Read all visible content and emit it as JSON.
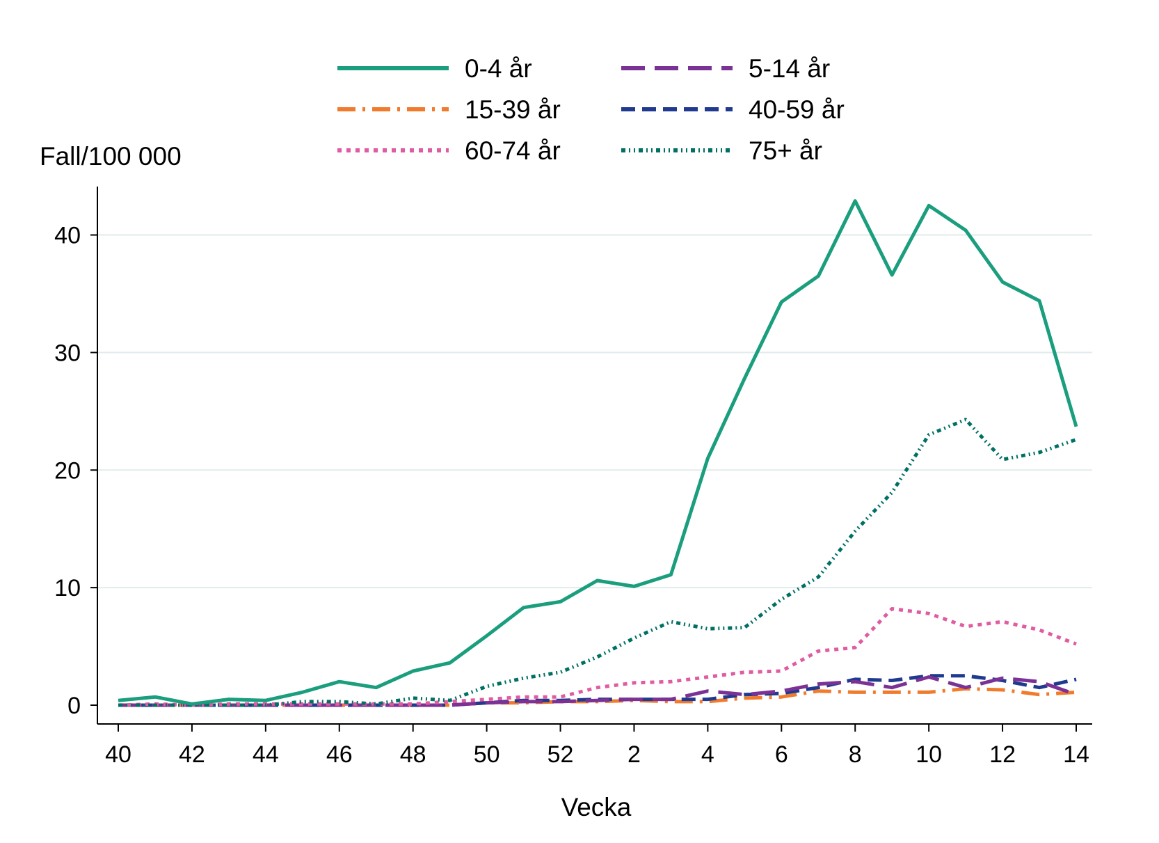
{
  "chart_data": {
    "type": "line",
    "ylabel": "Fall/100 000",
    "xlabel": "Vecka",
    "ylim": [
      0,
      44
    ],
    "yticks": [
      0,
      10,
      20,
      30,
      40
    ],
    "x": [
      "40",
      "41",
      "42",
      "43",
      "44",
      "45",
      "46",
      "47",
      "48",
      "49",
      "50",
      "51",
      "52",
      "1",
      "2",
      "3",
      "4",
      "5",
      "6",
      "7",
      "8",
      "9",
      "10",
      "11",
      "12",
      "13",
      "14"
    ],
    "xticks": [
      "40",
      "42",
      "44",
      "46",
      "48",
      "50",
      "52",
      "2",
      "4",
      "6",
      "8",
      "10",
      "12",
      "14"
    ],
    "grid": true,
    "legend_position": "top",
    "series": [
      {
        "name": "0-4 år",
        "color": "#1a9e7e",
        "dash": "solid",
        "values": [
          0.4,
          0.7,
          0.1,
          0.5,
          0.4,
          1.1,
          2.0,
          1.5,
          2.9,
          3.6,
          5.9,
          8.3,
          8.8,
          10.6,
          10.1,
          11.1,
          21.0,
          27.8,
          34.3,
          36.5,
          42.9,
          36.6,
          42.5,
          40.4,
          36.0,
          34.4,
          23.7
        ]
      },
      {
        "name": "5-14 år",
        "color": "#7b3294",
        "dash": "longdash",
        "values": [
          0,
          0,
          0,
          0,
          0,
          0,
          0,
          0,
          0,
          0,
          0.2,
          0.3,
          0.3,
          0.4,
          0.5,
          0.5,
          1.2,
          0.9,
          1.2,
          1.8,
          2.0,
          1.5,
          2.4,
          1.5,
          2.3,
          2.0,
          0.9
        ]
      },
      {
        "name": "15-39 år",
        "color": "#f07b2c",
        "dash": "dashdot",
        "values": [
          0,
          0,
          0,
          0,
          0,
          0,
          0,
          0,
          0,
          0,
          0.2,
          0.2,
          0.3,
          0.3,
          0.4,
          0.3,
          0.3,
          0.6,
          0.7,
          1.2,
          1.1,
          1.1,
          1.1,
          1.4,
          1.3,
          0.9,
          1.1
        ]
      },
      {
        "name": "40-59 år",
        "color": "#1f3a8f",
        "dash": "shortdash",
        "values": [
          0,
          0,
          0,
          0,
          0,
          0,
          0,
          0,
          0,
          0,
          0.2,
          0.4,
          0.4,
          0.5,
          0.5,
          0.5,
          0.5,
          0.9,
          1.0,
          1.5,
          2.2,
          2.1,
          2.5,
          2.5,
          2.1,
          1.5,
          2.2
        ]
      },
      {
        "name": "60-74 år",
        "color": "#e05ca2",
        "dash": "dot",
        "values": [
          0,
          0.1,
          0,
          0.1,
          0.1,
          0.1,
          0.1,
          0.1,
          0.1,
          0.3,
          0.5,
          0.7,
          0.7,
          1.5,
          1.9,
          2.0,
          2.4,
          2.8,
          2.9,
          4.6,
          4.9,
          8.2,
          7.8,
          6.7,
          7.1,
          6.4,
          5.2
        ]
      },
      {
        "name": "75+ år",
        "color": "#007065",
        "dash": "dashdotdot",
        "values": [
          0,
          0,
          0,
          0,
          0,
          0.3,
          0.3,
          0.1,
          0.6,
          0.4,
          1.6,
          2.3,
          2.8,
          4.1,
          5.7,
          7.1,
          6.5,
          6.6,
          9.0,
          10.9,
          14.8,
          18.1,
          23.0,
          24.3,
          20.9,
          21.5,
          22.6
        ]
      }
    ]
  }
}
